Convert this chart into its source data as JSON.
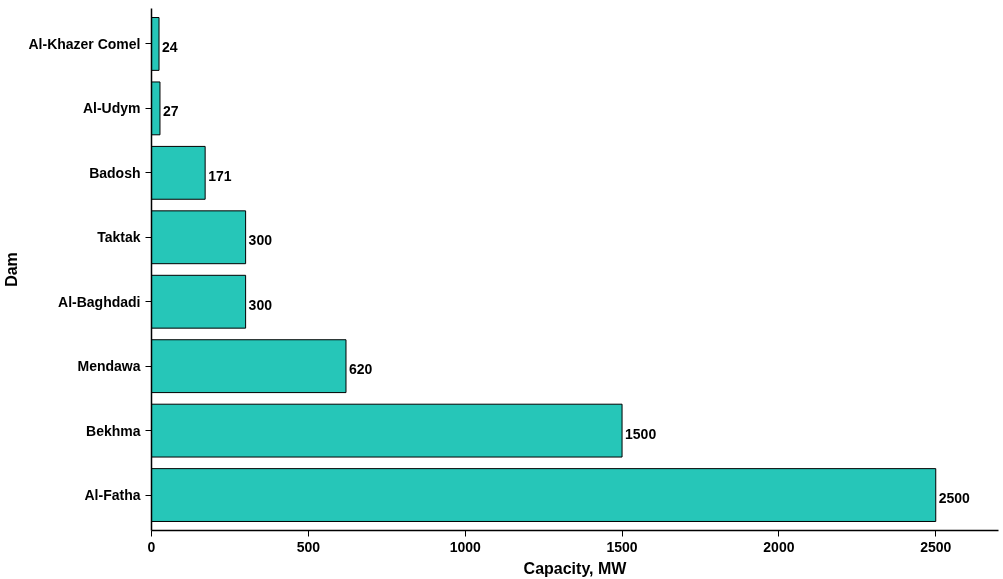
{
  "chart_data": {
    "type": "bar",
    "orientation": "horizontal",
    "xlabel": "Capacity, MW",
    "ylabel": "Dam",
    "categories": [
      "Al-Khazer Comel",
      "Al-Udym",
      "Badosh",
      "Taktak",
      "Al-Baghdadi",
      "Mendawa",
      "Bekhma",
      "Al-Fatha"
    ],
    "values": [
      24,
      27,
      171,
      300,
      300,
      620,
      1500,
      2500
    ],
    "color": "#26c6b8",
    "xlim": [
      0,
      2700
    ],
    "xticks": [
      0,
      500,
      1000,
      1500,
      2000,
      2500
    ],
    "grid": false,
    "data_labels": true
  }
}
